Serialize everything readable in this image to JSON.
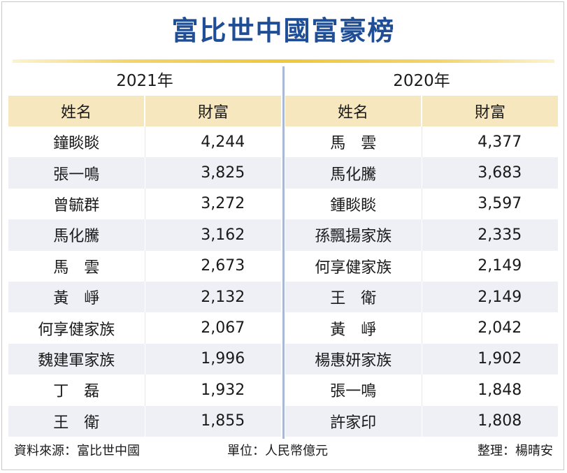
{
  "title": "富比世中國富豪榜",
  "years": [
    "2021年",
    "2020年"
  ],
  "headers": {
    "name": "姓名",
    "wealth": "財富"
  },
  "tables": [
    {
      "year": "2021年",
      "rows": [
        {
          "name": "鐘睒睒",
          "value": "4,244"
        },
        {
          "name": "張一鳴",
          "value": "3,825"
        },
        {
          "name": "曾毓群",
          "value": "3,272"
        },
        {
          "name": "馬化騰",
          "value": "3,162"
        },
        {
          "name": "馬　雲",
          "value": "2,673"
        },
        {
          "name": "黃　崢",
          "value": "2,132"
        },
        {
          "name": "何享健家族",
          "value": "2,067"
        },
        {
          "name": "魏建軍家族",
          "value": "1,996"
        },
        {
          "name": "丁　磊",
          "value": "1,932"
        },
        {
          "name": "王　衛",
          "value": "1,855"
        }
      ]
    },
    {
      "year": "2020年",
      "rows": [
        {
          "name": "馬　雲",
          "value": "4,377"
        },
        {
          "name": "馬化騰",
          "value": "3,683"
        },
        {
          "name": "鍾睒睒",
          "value": "3,597"
        },
        {
          "name": "孫飄揚家族",
          "value": "2,335"
        },
        {
          "name": "何享健家族",
          "value": "2,149"
        },
        {
          "name": "王　衛",
          "value": "2,149"
        },
        {
          "name": "黃　崢",
          "value": "2,042"
        },
        {
          "name": "楊惠妍家族",
          "value": "1,902"
        },
        {
          "name": "張一鳴",
          "value": "1,848"
        },
        {
          "name": "許家印",
          "value": "1,808"
        }
      ]
    }
  ],
  "footer": {
    "source": "資料來源：富比世中國",
    "unit": "單位：人民幣億元",
    "editor": "整理：楊晴安"
  },
  "colors": {
    "title": "#1f4e96",
    "header_bg": "#f6e7bf",
    "stripe_bg": "#eef0f6",
    "rule": "#eec83e",
    "divider": "#a9b8d4"
  },
  "chart_data": {
    "type": "table",
    "title": "富比世中國富豪榜",
    "columns": [
      "姓名",
      "財富"
    ],
    "groups": [
      {
        "name": "2021年",
        "rows": [
          [
            "鐘睒睒",
            4244
          ],
          [
            "張一鳴",
            3825
          ],
          [
            "曾毓群",
            3272
          ],
          [
            "馬化騰",
            3162
          ],
          [
            "馬　雲",
            2673
          ],
          [
            "黃　崢",
            2132
          ],
          [
            "何享健家族",
            2067
          ],
          [
            "魏建軍家族",
            1996
          ],
          [
            "丁　磊",
            1932
          ],
          [
            "王　衛",
            1855
          ]
        ]
      },
      {
        "name": "2020年",
        "rows": [
          [
            "馬　雲",
            4377
          ],
          [
            "馬化騰",
            3683
          ],
          [
            "鍾睒睒",
            3597
          ],
          [
            "孫飄揚家族",
            2335
          ],
          [
            "何享健家族",
            2149
          ],
          [
            "王　衛",
            2149
          ],
          [
            "黃　崢",
            2042
          ],
          [
            "楊惠妍家族",
            1902
          ],
          [
            "張一鳴",
            1848
          ],
          [
            "許家印",
            1808
          ]
        ]
      }
    ],
    "unit": "單位：人民幣億元",
    "source": "資料來源：富比世中國"
  }
}
